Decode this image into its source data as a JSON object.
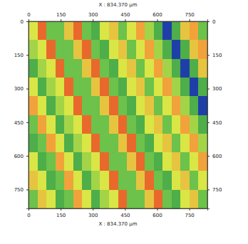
{
  "chart_data": {
    "type": "heatmap",
    "title": "X : 834.370 µm",
    "xlabel": "X : 834.370 µm",
    "xlim": [
      0,
      834.37
    ],
    "ylim": [
      0,
      834.37
    ],
    "xticks": [
      0,
      150,
      300,
      450,
      600,
      750
    ],
    "yticks": [
      0,
      150,
      300,
      450,
      600,
      750
    ],
    "zlim": [
      0,
      10
    ],
    "grid": false,
    "cells": [
      [
        6,
        9,
        4,
        4,
        7,
        9,
        4,
        3,
        6,
        7,
        4,
        6,
        8,
        5,
        3,
        0,
        3,
        7,
        8,
        4
      ],
      [
        6,
        9,
        4,
        4,
        7,
        9,
        4,
        3,
        6,
        7,
        4,
        6,
        8,
        5,
        3,
        0,
        3,
        7,
        8,
        4
      ],
      [
        5,
        6,
        9,
        4,
        4,
        7,
        9,
        4,
        3,
        6,
        7,
        4,
        6,
        8,
        5,
        3,
        0,
        3,
        7,
        8
      ],
      [
        5,
        6,
        9,
        4,
        4,
        7,
        9,
        4,
        3,
        6,
        7,
        4,
        6,
        8,
        5,
        3,
        0,
        3,
        7,
        8
      ],
      [
        3,
        5,
        6,
        9,
        4,
        4,
        7,
        9,
        4,
        3,
        6,
        7,
        4,
        6,
        8,
        5,
        3,
        0,
        3,
        7
      ],
      [
        3,
        5,
        6,
        9,
        4,
        4,
        7,
        9,
        4,
        3,
        6,
        7,
        4,
        6,
        8,
        5,
        3,
        0,
        3,
        7
      ],
      [
        6,
        3,
        5,
        6,
        9,
        4,
        4,
        7,
        9,
        4,
        3,
        6,
        7,
        4,
        6,
        8,
        5,
        3,
        0,
        3
      ],
      [
        6,
        3,
        5,
        6,
        9,
        4,
        4,
        7,
        9,
        4,
        3,
        6,
        7,
        4,
        6,
        8,
        5,
        3,
        0,
        3
      ],
      [
        8,
        6,
        3,
        5,
        6,
        9,
        4,
        4,
        7,
        9,
        4,
        3,
        6,
        7,
        4,
        6,
        8,
        5,
        3,
        0
      ],
      [
        8,
        6,
        3,
        5,
        6,
        9,
        4,
        4,
        7,
        9,
        4,
        3,
        6,
        7,
        4,
        6,
        8,
        5,
        3,
        0
      ],
      [
        4,
        8,
        6,
        3,
        5,
        6,
        9,
        4,
        4,
        7,
        9,
        4,
        3,
        6,
        7,
        4,
        6,
        8,
        5,
        3
      ],
      [
        4,
        8,
        6,
        3,
        5,
        6,
        9,
        4,
        4,
        7,
        9,
        4,
        3,
        6,
        7,
        4,
        6,
        8,
        5,
        3
      ],
      [
        3,
        4,
        8,
        6,
        3,
        5,
        6,
        9,
        4,
        4,
        7,
        9,
        4,
        3,
        6,
        7,
        4,
        6,
        8,
        5
      ],
      [
        3,
        4,
        8,
        6,
        3,
        5,
        6,
        9,
        4,
        4,
        7,
        9,
        4,
        3,
        6,
        7,
        4,
        6,
        8,
        5
      ],
      [
        6,
        3,
        4,
        8,
        6,
        3,
        5,
        6,
        9,
        4,
        4,
        7,
        9,
        4,
        3,
        6,
        7,
        4,
        6,
        8
      ],
      [
        6,
        3,
        4,
        8,
        6,
        3,
        5,
        6,
        9,
        4,
        4,
        7,
        9,
        4,
        3,
        6,
        7,
        4,
        6,
        8
      ],
      [
        7,
        6,
        3,
        4,
        8,
        6,
        3,
        5,
        6,
        9,
        4,
        4,
        7,
        9,
        4,
        3,
        6,
        7,
        4,
        6
      ],
      [
        7,
        6,
        3,
        4,
        8,
        6,
        3,
        5,
        6,
        9,
        4,
        4,
        7,
        9,
        4,
        3,
        6,
        7,
        4,
        6
      ],
      [
        4,
        7,
        6,
        3,
        4,
        8,
        6,
        3,
        5,
        6,
        9,
        4,
        4,
        7,
        9,
        4,
        3,
        6,
        7,
        4
      ],
      [
        4,
        7,
        6,
        3,
        4,
        8,
        6,
        3,
        5,
        6,
        9,
        4,
        4,
        7,
        9,
        4,
        3,
        6,
        7,
        4
      ]
    ]
  }
}
